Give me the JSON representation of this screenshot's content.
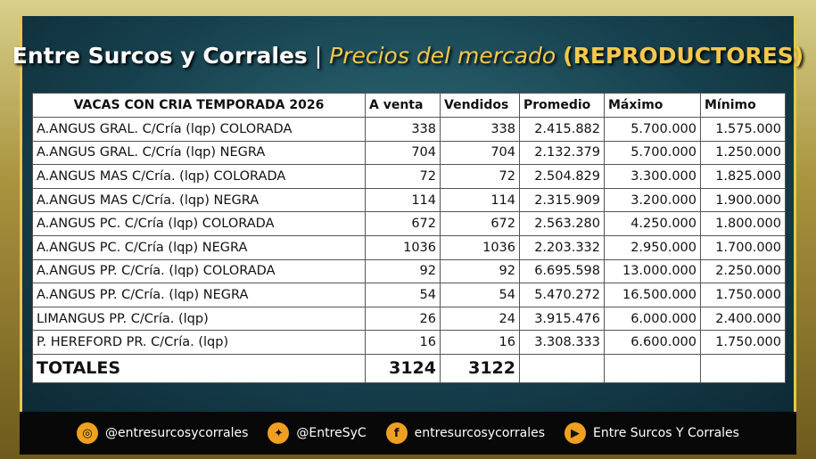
{
  "header": {
    "brand": "Entre Surcos y Corrales",
    "separator": "|",
    "subtitle": "Precios del mercado",
    "category": "(REPRODUCTORES)"
  },
  "table": {
    "columns": [
      "VACAS CON CRIA TEMPORADA 2026",
      "A venta",
      "Vendidos",
      "Promedio",
      "Máximo",
      "Mínimo"
    ],
    "rows": [
      [
        "A.ANGUS GRAL. C/Cría (lqp) COLORADA",
        338,
        338,
        "2.415.882",
        "5.700.000",
        "1.575.000"
      ],
      [
        "A.ANGUS GRAL. C/Cría (lqp) NEGRA",
        704,
        704,
        "2.132.379",
        "5.700.000",
        "1.250.000"
      ],
      [
        "A.ANGUS MAS C/Cría. (lqp) COLORADA",
        72,
        72,
        "2.504.829",
        "3.300.000",
        "1.825.000"
      ],
      [
        "A.ANGUS MAS C/Cría. (lqp) NEGRA",
        114,
        114,
        "2.315.909",
        "3.200.000",
        "1.900.000"
      ],
      [
        "A.ANGUS PC. C/Cría (lqp) COLORADA",
        672,
        672,
        "2.563.280",
        "4.250.000",
        "1.800.000"
      ],
      [
        "A.ANGUS PC. C/Cría (lqp) NEGRA",
        1036,
        1036,
        "2.203.332",
        "2.950.000",
        "1.700.000"
      ],
      [
        "A.ANGUS PP. C/Cría. (lqp) COLORADA",
        92,
        92,
        "6.695.598",
        "13.000.000",
        "2.250.000"
      ],
      [
        "A.ANGUS PP. C/Cría. (lqp) NEGRA",
        54,
        54,
        "5.470.272",
        "16.500.000",
        "1.750.000"
      ],
      [
        "LIMANGUS PP. C/Cría. (lqp)",
        26,
        24,
        "3.915.476",
        "6.000.000",
        "2.400.000"
      ],
      [
        "P. HEREFORD PR. C/Cría. (lqp)",
        16,
        16,
        "3.308.333",
        "6.600.000",
        "1.750.000"
      ]
    ],
    "totals": [
      "TOTALES",
      3124,
      3122
    ]
  },
  "footer": {
    "instagram": "@entresurcosycorrales",
    "twitter": "@EntreSyC",
    "facebook": "entresurcosycorrales",
    "youtube": "Entre Surcos Y Corrales"
  }
}
